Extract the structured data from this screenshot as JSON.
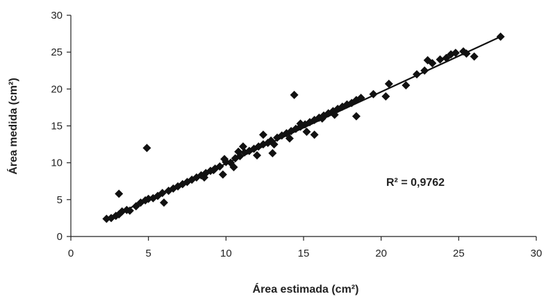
{
  "chart_data": {
    "type": "scatter",
    "xlabel": "Área estimada (cm²)",
    "ylabel": "Área medida (cm²)",
    "xlim": [
      0,
      30
    ],
    "ylim": [
      0,
      30
    ],
    "xticks": [
      "0",
      "5",
      "10",
      "15",
      "20",
      "25",
      "30"
    ],
    "yticks": [
      "0",
      "5",
      "10",
      "15",
      "20",
      "25",
      "30"
    ],
    "grid": false,
    "marker": "diamond",
    "marker_color": "#111111",
    "annotation": "R² = 0,9762",
    "trendline": {
      "x": [
        2.3,
        27.7
      ],
      "y": [
        2.4,
        27.1
      ]
    },
    "series": [
      {
        "x": [
          2.3,
          2.6,
          2.9,
          3.1,
          3.3,
          3.6,
          3.8,
          4.2,
          4.5,
          4.8,
          5.0,
          5.3,
          5.6,
          5.9,
          6.0,
          6.3,
          6.6,
          6.9,
          7.2,
          7.5,
          7.8,
          8.1,
          8.4,
          8.7,
          9.0,
          9.3,
          9.6,
          9.8,
          10.0,
          10.3,
          10.6,
          10.9,
          11.2,
          11.5,
          11.8,
          12.1,
          12.4,
          12.7,
          13.0,
          13.3,
          13.6,
          13.9,
          14.2,
          14.5,
          14.8,
          15.1,
          15.4,
          15.7,
          16.0,
          16.3,
          16.6,
          16.9,
          17.2,
          17.5,
          17.8,
          18.1,
          18.4,
          18.7,
          19.5,
          20.3,
          20.5,
          21.6,
          22.3,
          22.8,
          23.0,
          23.3,
          23.8,
          24.2,
          24.5,
          24.8,
          25.3,
          25.5,
          26.0,
          27.7,
          3.1,
          4.9,
          14.4,
          15.7,
          18.4,
          9.9,
          10.5,
          11.1,
          12.4,
          13.1,
          14.1,
          14.8,
          15.2,
          16.2,
          17.0,
          8.6,
          9.2,
          10.8,
          12.0,
          12.9
        ],
        "y": [
          2.4,
          2.5,
          2.8,
          3.0,
          3.4,
          3.6,
          3.5,
          4.1,
          4.6,
          4.9,
          5.1,
          5.2,
          5.5,
          5.9,
          4.6,
          6.2,
          6.5,
          6.8,
          7.1,
          7.4,
          7.7,
          8.0,
          8.3,
          8.6,
          8.9,
          9.2,
          9.5,
          8.4,
          10.1,
          10.0,
          10.6,
          10.9,
          11.4,
          11.6,
          11.9,
          12.2,
          12.5,
          12.7,
          11.3,
          13.4,
          13.7,
          14.0,
          14.3,
          14.6,
          14.9,
          15.2,
          15.5,
          15.8,
          16.1,
          16.4,
          16.7,
          17.0,
          17.3,
          17.6,
          17.9,
          18.1,
          18.5,
          18.8,
          19.3,
          19.0,
          20.7,
          20.5,
          22.0,
          22.5,
          23.9,
          23.5,
          24.0,
          24.2,
          24.7,
          24.9,
          25.1,
          24.8,
          24.4,
          27.1,
          5.8,
          12.0,
          19.2,
          13.8,
          16.3,
          10.5,
          9.4,
          12.2,
          13.8,
          12.5,
          13.3,
          15.3,
          14.2,
          16.0,
          16.5,
          8.0,
          9.0,
          11.5,
          11.0,
          13.0
        ]
      }
    ]
  }
}
